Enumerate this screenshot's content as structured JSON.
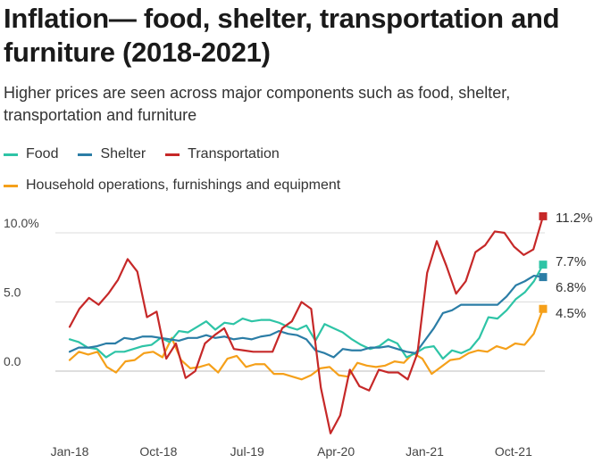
{
  "chart_data": {
    "type": "line",
    "title": "Inflation— food, shelter, transportation and furniture (2018-2021)",
    "subtitle": "Higher prices are seen across major components such as food, shelter, transportation and furniture",
    "xlabel": "",
    "ylabel": "",
    "x_ticks": [
      "Jan-18",
      "Oct-18",
      "Jul-19",
      "Apr-20",
      "Jan-21",
      "Oct-21"
    ],
    "y_ticks": [
      "10.0%",
      "5.0",
      "0.0"
    ],
    "ylim": [
      -5,
      11.5
    ],
    "x_start": "Jan-18",
    "x_end": "Jan-22",
    "frequency": "monthly",
    "series": [
      {
        "name": "Food",
        "color": "#2ec4a6",
        "end_label": "7.7%",
        "values": [
          2.3,
          2.1,
          1.7,
          1.6,
          1.0,
          1.4,
          1.4,
          1.6,
          1.8,
          1.9,
          2.4,
          2.1,
          2.9,
          2.8,
          3.2,
          3.6,
          3.0,
          3.5,
          3.4,
          3.8,
          3.6,
          3.7,
          3.7,
          3.5,
          3.2,
          3.0,
          3.3,
          2.2,
          3.4,
          3.1,
          2.8,
          2.3,
          1.9,
          1.6,
          1.8,
          2.3,
          2.0,
          1.0,
          1.3,
          1.7,
          1.8,
          0.9,
          1.5,
          1.3,
          1.6,
          2.4,
          3.9,
          3.8,
          4.4,
          5.2,
          5.7,
          6.5,
          7.7
        ]
      },
      {
        "name": "Shelter",
        "color": "#2b7da6",
        "end_label": "6.8%",
        "values": [
          1.4,
          1.7,
          1.7,
          1.8,
          2.0,
          2.0,
          2.4,
          2.3,
          2.5,
          2.5,
          2.4,
          2.3,
          2.2,
          2.4,
          2.4,
          2.6,
          2.4,
          2.5,
          2.3,
          2.4,
          2.3,
          2.5,
          2.6,
          2.9,
          2.7,
          2.6,
          2.3,
          1.5,
          1.3,
          1.0,
          1.6,
          1.5,
          1.5,
          1.7,
          1.7,
          1.8,
          1.6,
          1.4,
          1.3,
          2.2,
          3.1,
          4.2,
          4.4,
          4.8,
          4.8,
          4.8,
          4.8,
          4.8,
          5.4,
          6.2,
          6.5,
          6.9,
          6.8
        ]
      },
      {
        "name": "Transportation",
        "color": "#c62828",
        "end_label": "11.2%",
        "values": [
          3.2,
          4.5,
          5.3,
          4.8,
          5.6,
          6.6,
          8.1,
          7.2,
          3.9,
          4.3,
          0.9,
          2.0,
          -0.5,
          0.0,
          2.0,
          2.6,
          3.1,
          1.6,
          1.5,
          1.4,
          1.4,
          1.4,
          3.1,
          3.6,
          5.0,
          4.5,
          -1.2,
          -4.5,
          -3.2,
          0.1,
          -1.1,
          -1.4,
          0.1,
          -0.1,
          -0.1,
          -0.6,
          1.3,
          7.1,
          9.4,
          7.6,
          5.6,
          6.5,
          8.6,
          9.1,
          10.1,
          10.0,
          9.0,
          8.4,
          8.8,
          11.2
        ]
      },
      {
        "name": "Household operations, furnishings and equipment",
        "color": "#f5a01a",
        "end_label": "4.5%",
        "values": [
          0.8,
          1.4,
          1.2,
          1.4,
          0.3,
          -0.1,
          0.7,
          0.8,
          1.3,
          1.4,
          1.0,
          2.4,
          0.8,
          0.2,
          0.3,
          0.5,
          -0.1,
          0.9,
          1.1,
          0.3,
          0.5,
          0.5,
          -0.2,
          -0.2,
          -0.4,
          -0.6,
          -0.3,
          0.2,
          0.3,
          -0.3,
          -0.4,
          0.6,
          0.4,
          0.3,
          0.4,
          0.7,
          0.6,
          1.3,
          0.9,
          -0.2,
          0.3,
          0.8,
          0.9,
          1.3,
          1.5,
          1.4,
          1.8,
          1.6,
          2.0,
          1.9,
          2.7,
          4.5
        ]
      }
    ],
    "end_labels_order": [
      "Transportation",
      "Food",
      "Shelter",
      "Household operations, furnishings and equipment"
    ]
  }
}
